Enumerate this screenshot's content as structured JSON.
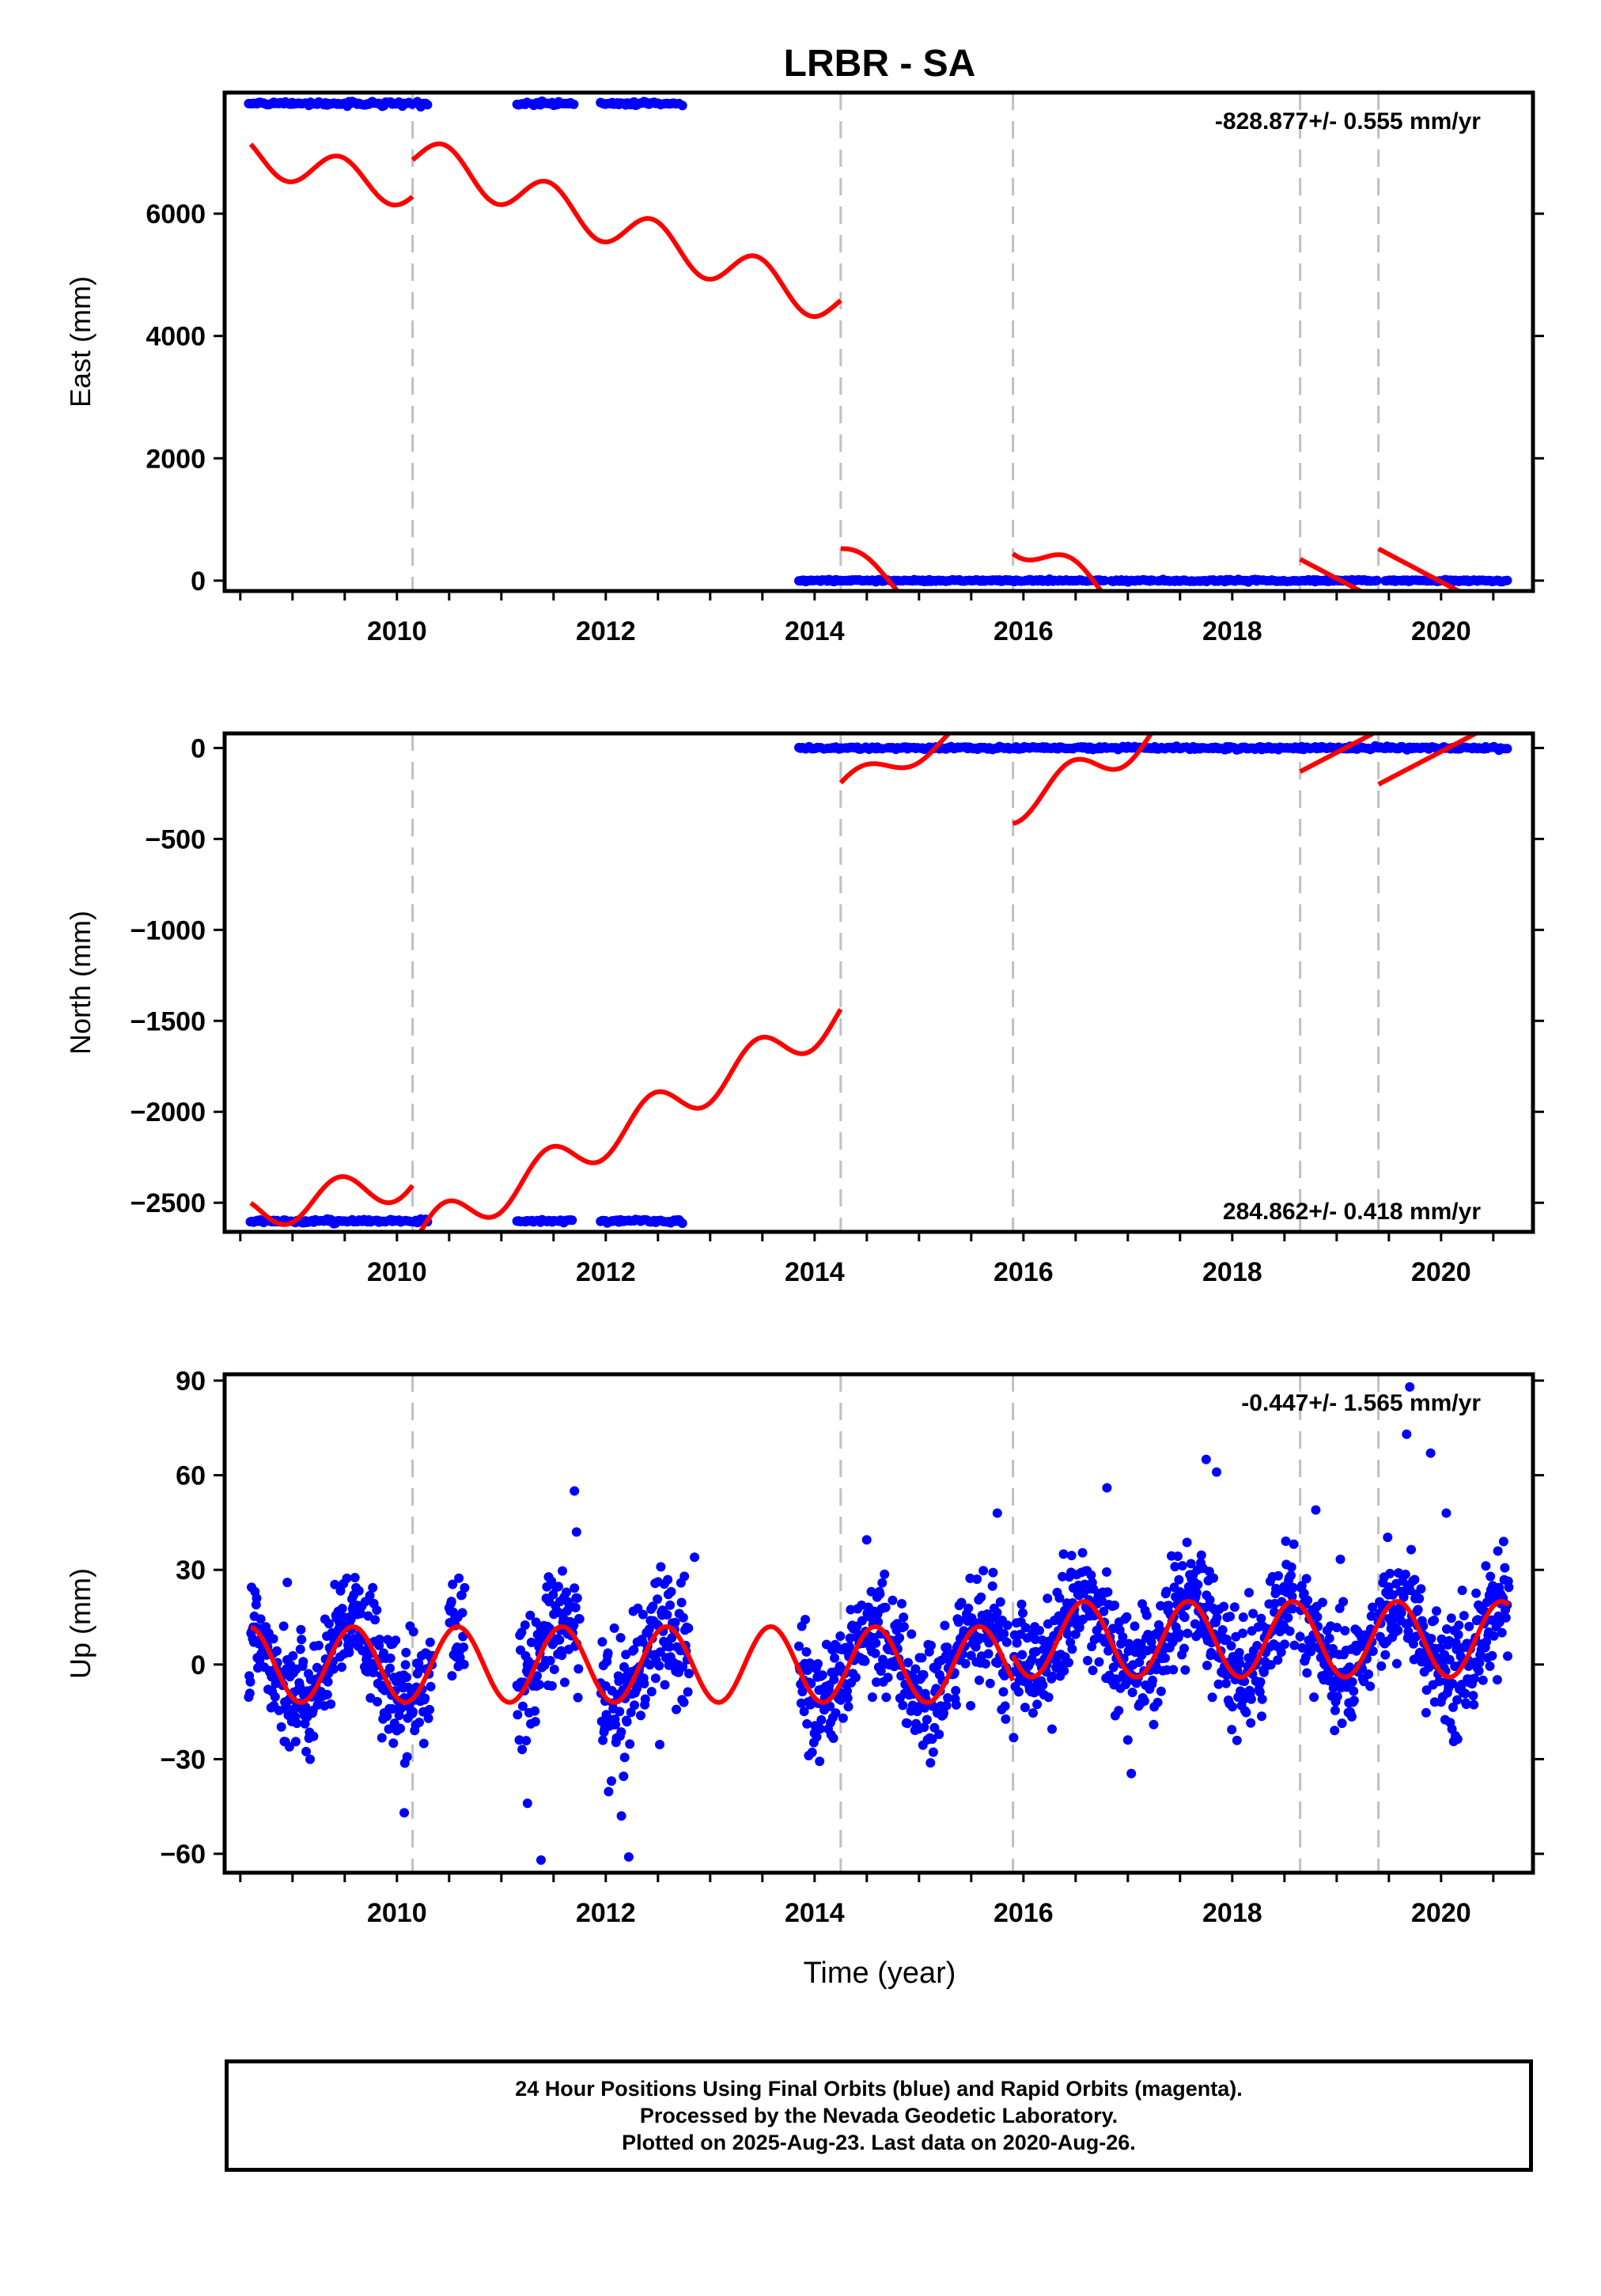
{
  "title": "LRBR - SA",
  "xlabel": "Time (year)",
  "colors": {
    "final_orbits": "#0000ff",
    "model": "#ff0000",
    "steps": "#c0c0c0",
    "axes": "#000000"
  },
  "caption": [
    "24 Hour Positions Using Final Orbits (blue) and Rapid Orbits (magenta).",
    "Processed by the Nevada Geodetic Laboratory.",
    "Plotted on 2025-Aug-23. Last data on 2020-Aug-26."
  ],
  "chart_data": [
    {
      "type": "scatter",
      "component": "east",
      "ylabel": "East (mm)",
      "velocity_label": "-828.877+/- 0.555 mm/yr",
      "xlim": [
        2008.35,
        2020.88
      ],
      "ylim": [
        -170,
        7980
      ],
      "xticks": [
        2010,
        2012,
        2014,
        2016,
        2018,
        2020
      ],
      "yticks": [
        0,
        2000,
        4000,
        6000
      ],
      "step_epochs": [
        2010.15,
        2014.25,
        2015.9,
        2018.65,
        2019.4
      ],
      "data_segments": [
        {
          "start": 2008.58,
          "end": 2010.3,
          "mean": 7800,
          "noise": 15
        },
        {
          "start": 2011.15,
          "end": 2011.7,
          "mean": 7800,
          "noise": 15
        },
        {
          "start": 2011.95,
          "end": 2012.75,
          "mean": 7800,
          "noise": 15
        },
        {
          "start": 2013.85,
          "end": 2020.65,
          "mean": 0,
          "noise": 8
        }
      ],
      "model_segments": [
        {
          "start": 2008.6,
          "end": 2010.15,
          "offset": 6960,
          "trend": -380,
          "annual_amp": 300,
          "phase": 0.2
        },
        {
          "start": 2010.15,
          "end": 2014.25,
          "offset": 6980,
          "trend": -610,
          "annual_amp": 330,
          "phase": 0.2
        },
        {
          "start": 2014.25,
          "end": 2015.9,
          "offset": 470,
          "trend": -1000,
          "annual_amp": 170,
          "phase": 0.2
        },
        {
          "start": 2015.9,
          "end": 2018.65,
          "offset": 650,
          "trend": -900,
          "annual_amp": 220,
          "phase": 0.2
        },
        {
          "start": 2018.65,
          "end": 2019.4,
          "offset": 350,
          "trend": -900,
          "annual_amp": 0,
          "phase": 0.2
        },
        {
          "start": 2019.4,
          "end": 2020.65,
          "offset": 520,
          "trend": -900,
          "annual_amp": 0,
          "phase": 0.2
        }
      ]
    },
    {
      "type": "scatter",
      "component": "north",
      "ylabel": "North (mm)",
      "velocity_label": "284.862+/- 0.418 mm/yr",
      "xlim": [
        2008.35,
        2020.88
      ],
      "ylim": [
        -2660,
        80
      ],
      "xticks": [
        2010,
        2012,
        2014,
        2016,
        2018,
        2020
      ],
      "yticks": [
        -2500,
        -2000,
        -1500,
        -1000,
        -500,
        0
      ],
      "step_epochs": [
        2010.15,
        2014.25,
        2015.9,
        2018.65,
        2019.4
      ],
      "data_segments": [
        {
          "start": 2008.58,
          "end": 2010.3,
          "mean": -2600,
          "noise": 5
        },
        {
          "start": 2011.15,
          "end": 2011.7,
          "mean": -2600,
          "noise": 5
        },
        {
          "start": 2011.95,
          "end": 2012.75,
          "mean": -2600,
          "noise": 5
        },
        {
          "start": 2013.85,
          "end": 2020.65,
          "mean": 0,
          "noise": 4
        }
      ],
      "model_segments": [
        {
          "start": 2008.6,
          "end": 2010.15,
          "offset": -2560,
          "trend": 120,
          "annual_amp": 100,
          "phase": 0.2
        },
        {
          "start": 2010.15,
          "end": 2014.25,
          "offset": -2700,
          "trend": 300,
          "annual_amp": 110,
          "phase": 0.2
        },
        {
          "start": 2014.25,
          "end": 2015.9,
          "offset": -210,
          "trend": 250,
          "annual_amp": 60,
          "phase": 0.2
        },
        {
          "start": 2015.9,
          "end": 2018.65,
          "offset": -330,
          "trend": 300,
          "annual_amp": 90,
          "phase": 0.2
        },
        {
          "start": 2018.65,
          "end": 2019.4,
          "offset": -130,
          "trend": 300,
          "annual_amp": 0,
          "phase": 0.2
        },
        {
          "start": 2019.4,
          "end": 2020.65,
          "offset": -200,
          "trend": 300,
          "annual_amp": 0,
          "phase": 0.2
        }
      ]
    },
    {
      "type": "scatter",
      "component": "up",
      "ylabel": "Up (mm)",
      "velocity_label": "-0.447+/- 1.565 mm/yr",
      "xlim": [
        2008.35,
        2020.88
      ],
      "ylim": [
        -66,
        92
      ],
      "xticks": [
        2010,
        2012,
        2014,
        2016,
        2018,
        2020
      ],
      "yticks": [
        -60,
        -30,
        0,
        30,
        60,
        90
      ],
      "step_epochs": [
        2010.15,
        2014.25,
        2015.9,
        2018.65,
        2019.4
      ],
      "data_segments": [
        {
          "start": 2008.58,
          "end": 2010.35,
          "mean": 0,
          "noise": 9
        },
        {
          "start": 2010.5,
          "end": 2010.65,
          "mean": 0,
          "noise": 9
        },
        {
          "start": 2011.15,
          "end": 2011.75,
          "mean": 0,
          "noise": 10
        },
        {
          "start": 2011.95,
          "end": 2012.8,
          "mean": 0,
          "noise": 11
        },
        {
          "start": 2013.85,
          "end": 2015.85,
          "mean": 0,
          "noise": 9
        },
        {
          "start": 2015.9,
          "end": 2018.6,
          "mean": 7,
          "noise": 9
        },
        {
          "start": 2018.65,
          "end": 2019.35,
          "mean": 7,
          "noise": 9
        },
        {
          "start": 2019.4,
          "end": 2020.65,
          "mean": 7,
          "noise": 10
        }
      ],
      "model_segments": [
        {
          "start": 2008.6,
          "end": 2015.9,
          "offset": 0,
          "trend": 0,
          "annual_amp": 12,
          "phase": 0.33
        },
        {
          "start": 2015.9,
          "end": 2018.65,
          "offset": 8,
          "trend": 0,
          "annual_amp": 12,
          "phase": 0.33
        },
        {
          "start": 2018.65,
          "end": 2019.4,
          "offset": 8,
          "trend": 0,
          "annual_amp": 12,
          "phase": 0.33
        },
        {
          "start": 2019.4,
          "end": 2020.65,
          "offset": 8,
          "trend": 0,
          "annual_amp": 12,
          "phase": 0.33
        }
      ],
      "outliers": [
        {
          "x": 2019.7,
          "y": 88
        },
        {
          "x": 2019.67,
          "y": 73
        },
        {
          "x": 2019.9,
          "y": 67
        },
        {
          "x": 2017.75,
          "y": 65
        },
        {
          "x": 2017.85,
          "y": 61
        },
        {
          "x": 2011.7,
          "y": 55
        },
        {
          "x": 2016.8,
          "y": 56
        },
        {
          "x": 2011.72,
          "y": 42
        },
        {
          "x": 2015.75,
          "y": 48
        },
        {
          "x": 2018.8,
          "y": 49
        },
        {
          "x": 2020.05,
          "y": 48
        },
        {
          "x": 2011.38,
          "y": -62
        },
        {
          "x": 2012.22,
          "y": -61
        },
        {
          "x": 2010.07,
          "y": -47
        },
        {
          "x": 2011.25,
          "y": -44
        },
        {
          "x": 2012.15,
          "y": -48
        },
        {
          "x": 2008.95,
          "y": 26
        },
        {
          "x": 2012.85,
          "y": 34
        }
      ]
    }
  ]
}
